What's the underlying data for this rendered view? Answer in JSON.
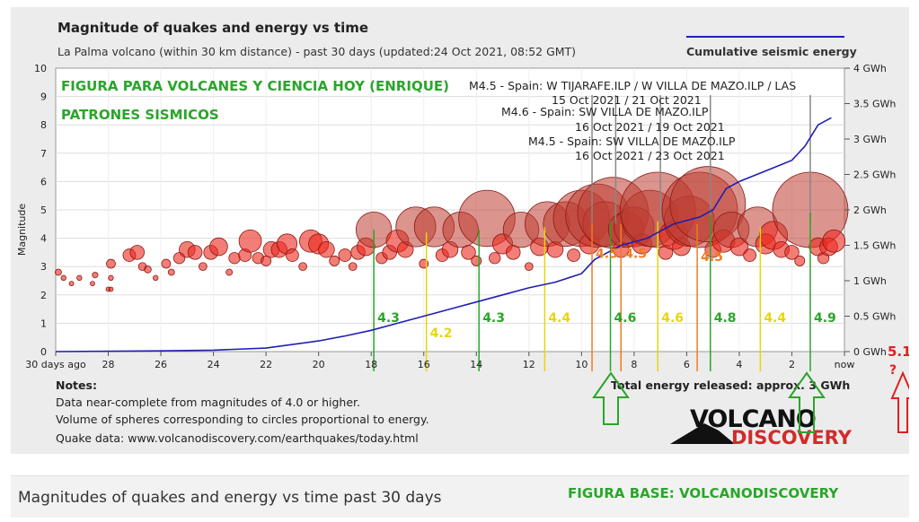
{
  "chart_data": {
    "type": "scatter",
    "title": "Magnitude of quakes and energy vs time",
    "subtitle": "La Palma volcano (within 30 km distance) - past 30 days (updated:24 Oct 2021, 08:52 GMT)",
    "legend": {
      "label": "Cumulative seismic energy",
      "position": "top-right"
    },
    "ylabel": "Magnitude",
    "ylim": [
      0,
      10
    ],
    "xlim": [
      30,
      0
    ],
    "x_ticks": [
      "30 days ago",
      "28",
      "26",
      "24",
      "22",
      "20",
      "18",
      "16",
      "14",
      "12",
      "10",
      "8",
      "6",
      "4",
      "2",
      "now"
    ],
    "y_ticks": [
      "0",
      "1",
      "2",
      "3",
      "4",
      "5",
      "6",
      "7",
      "8",
      "9",
      "10"
    ],
    "y2_ticks": [
      "0 GWh",
      "0.5 GWh",
      "1 GWh",
      "1.5 GWh",
      "2 GWh",
      "2.5 GWh",
      "3 GWh",
      "3.5 GWh",
      "4 GWh"
    ],
    "y2lim": [
      0,
      4
    ],
    "grid": true,
    "energy_series": {
      "name": "Cumulative seismic energy",
      "color": "#1f1fb0",
      "x": [
        30,
        26,
        24,
        22,
        20,
        19,
        18,
        17,
        16,
        15,
        14,
        13,
        12,
        11,
        10,
        9.5,
        9,
        8.5,
        8,
        7.5,
        7,
        6.5,
        6,
        5.5,
        5,
        4.5,
        4,
        3,
        2,
        1.5,
        1,
        0.5
      ],
      "y": [
        0,
        0.01,
        0.02,
        0.05,
        0.15,
        0.22,
        0.3,
        0.4,
        0.5,
        0.6,
        0.7,
        0.8,
        0.9,
        0.98,
        1.1,
        1.3,
        1.4,
        1.5,
        1.55,
        1.6,
        1.7,
        1.8,
        1.85,
        1.9,
        2.0,
        2.3,
        2.4,
        2.55,
        2.7,
        2.9,
        3.2,
        3.3
      ]
    },
    "annotations": [
      {
        "text": "M4.5 - Spain: W TIJARAFE.ILP / W VILLA DE MAZO.ILP / LAS",
        "line2": "15 Oct 2021 / 21 Oct 2021"
      },
      {
        "text": "M4.6 - Spain: SW VILLA DE MAZO.ILP",
        "line2": "16 Oct 2021 / 19 Oct 2021"
      },
      {
        "text": "M4.5 - Spain: SW VILLA DE MAZO.ILP",
        "line2": "16 Oct 2021 / 23 Oct 2021"
      }
    ],
    "notes_title": "Notes:",
    "notes": [
      "Data near-complete from magnitudes of 4.0 or higher.",
      "Volume of spheres corresponding to circles proportional to energy.",
      "Quake data: www.volcanodiscovery.com/earthquakes/today.html"
    ],
    "total_energy": "Total energy released: approx. 3 GWh",
    "overlay_title": "FIGURA PARA VOLCANES Y CIENCIA HOY (ENRIQUE)",
    "overlay_subtitle": "PATRONES SISMICOS",
    "logo_top": "VOLCANO",
    "logo_bottom": "DISCOVERY",
    "forecast_label": "5.1",
    "forecast_q": "?",
    "pattern_lines": [
      {
        "x": 17.9,
        "mag": 4.3,
        "label": "4.3",
        "color": "#2aa52a",
        "label_y": 4.3
      },
      {
        "x": 15.9,
        "mag": 4.2,
        "label": "4.2",
        "color": "#e6d60b",
        "label_y": 0.5
      },
      {
        "x": 13.9,
        "mag": 4.3,
        "label": "4.3",
        "color": "#2aa52a",
        "label_y": 4.3
      },
      {
        "x": 11.4,
        "mag": 4.4,
        "label": "4.4",
        "color": "#e6d60b",
        "label_y": 4.4
      },
      {
        "x": 9.6,
        "mag": 4.5,
        "label": "4.5",
        "color": "#f07b22",
        "label_y": 3.3
      },
      {
        "x": 8.9,
        "mag": 4.6,
        "label": "4.6",
        "color": "#2aa52a",
        "label_y": 4.6
      },
      {
        "x": 8.5,
        "mag": 4.5,
        "label": "4.5",
        "color": "#f07b22",
        "label_y": 3.3
      },
      {
        "x": 7.1,
        "mag": 4.6,
        "label": "4.6",
        "color": "#e6d60b",
        "label_y": 4.6
      },
      {
        "x": 5.6,
        "mag": 4.5,
        "label": "4.5",
        "color": "#f07b22",
        "label_y": 3.2
      },
      {
        "x": 5.1,
        "mag": 4.8,
        "label": "4.8",
        "color": "#2aa52a",
        "label_y": 4.8
      },
      {
        "x": 3.2,
        "mag": 4.4,
        "label": "4.4",
        "color": "#e6d60b",
        "label_y": 4.4
      },
      {
        "x": 1.3,
        "mag": 4.9,
        "label": "4.9",
        "color": "#2aa52a",
        "label_y": 4.9
      }
    ],
    "quakes": [
      [
        29.9,
        2.8
      ],
      [
        29.7,
        2.6
      ],
      [
        29.4,
        2.4
      ],
      [
        29.1,
        2.6
      ],
      [
        28.6,
        2.4
      ],
      [
        28.5,
        2.7
      ],
      [
        28.0,
        2.2
      ],
      [
        27.9,
        2.6
      ],
      [
        27.9,
        2.2
      ],
      [
        27.9,
        3.1
      ],
      [
        27.2,
        3.4
      ],
      [
        26.9,
        3.5
      ],
      [
        26.7,
        3.0
      ],
      [
        26.5,
        2.9
      ],
      [
        26.2,
        2.6
      ],
      [
        25.8,
        3.1
      ],
      [
        25.6,
        2.8
      ],
      [
        25.3,
        3.3
      ],
      [
        25.0,
        3.6
      ],
      [
        24.7,
        3.5
      ],
      [
        24.4,
        3.0
      ],
      [
        24.1,
        3.5
      ],
      [
        23.8,
        3.7
      ],
      [
        23.4,
        2.8
      ],
      [
        23.2,
        3.3
      ],
      [
        22.8,
        3.4
      ],
      [
        22.6,
        3.9
      ],
      [
        22.3,
        3.3
      ],
      [
        22.0,
        3.2
      ],
      [
        21.8,
        3.6
      ],
      [
        21.5,
        3.6
      ],
      [
        21.2,
        3.8
      ],
      [
        21.0,
        3.4
      ],
      [
        20.6,
        3.0
      ],
      [
        20.3,
        3.9
      ],
      [
        20.0,
        3.8
      ],
      [
        19.7,
        3.6
      ],
      [
        19.4,
        3.2
      ],
      [
        19.0,
        3.4
      ],
      [
        18.7,
        3.0
      ],
      [
        18.5,
        3.5
      ],
      [
        18.2,
        3.7
      ],
      [
        17.9,
        4.3
      ],
      [
        17.6,
        3.3
      ],
      [
        17.3,
        3.5
      ],
      [
        17.0,
        3.9
      ],
      [
        16.7,
        3.6
      ],
      [
        16.3,
        4.4
      ],
      [
        16.0,
        3.1
      ],
      [
        15.6,
        4.4
      ],
      [
        15.3,
        3.4
      ],
      [
        15.0,
        3.6
      ],
      [
        14.6,
        4.3
      ],
      [
        14.3,
        3.5
      ],
      [
        14.0,
        3.2
      ],
      [
        13.6,
        4.7
      ],
      [
        13.3,
        3.3
      ],
      [
        13.0,
        3.8
      ],
      [
        12.6,
        3.5
      ],
      [
        12.3,
        4.3
      ],
      [
        12.0,
        3.0
      ],
      [
        11.6,
        3.7
      ],
      [
        11.3,
        4.5
      ],
      [
        11.0,
        3.6
      ],
      [
        10.6,
        4.5
      ],
      [
        10.3,
        3.4
      ],
      [
        10.0,
        4.7
      ],
      [
        9.7,
        3.8
      ],
      [
        9.4,
        4.8
      ],
      [
        9.1,
        4.5
      ],
      [
        8.8,
        4.9
      ],
      [
        8.5,
        3.6
      ],
      [
        8.3,
        4.3
      ],
      [
        8.0,
        4.4
      ],
      [
        7.7,
        3.8
      ],
      [
        7.4,
        4.7
      ],
      [
        7.1,
        5.0
      ],
      [
        6.8,
        3.5
      ],
      [
        6.5,
        4.1
      ],
      [
        6.2,
        3.7
      ],
      [
        5.9,
        4.6
      ],
      [
        5.5,
        5.0
      ],
      [
        5.2,
        5.2
      ],
      [
        5.0,
        3.6
      ],
      [
        4.6,
        3.9
      ],
      [
        4.3,
        4.3
      ],
      [
        4.0,
        3.7
      ],
      [
        3.6,
        3.4
      ],
      [
        3.3,
        4.4
      ],
      [
        3.0,
        3.8
      ],
      [
        2.7,
        4.1
      ],
      [
        2.4,
        3.6
      ],
      [
        2.0,
        3.5
      ],
      [
        1.7,
        3.2
      ],
      [
        1.3,
        5.0
      ],
      [
        1.0,
        3.7
      ],
      [
        0.8,
        3.3
      ],
      [
        0.6,
        3.7
      ],
      [
        0.4,
        3.9
      ]
    ]
  },
  "caption": {
    "text": "Magnitudes of quakes and energy vs time past 30 days",
    "credit": "FIGURA BASE: VOLCANODISCOVERY"
  }
}
